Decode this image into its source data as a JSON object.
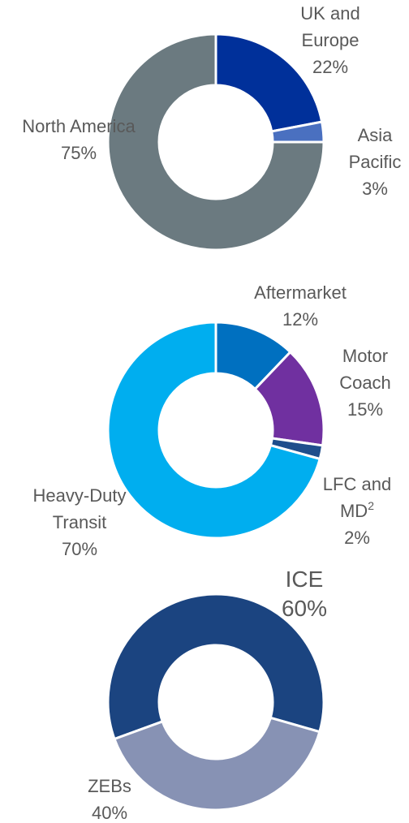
{
  "chart_data": [
    {
      "type": "pie",
      "startangle": 0,
      "categories": [
        "UK and Europe",
        "Asia Pacific",
        "North America"
      ],
      "values": [
        22,
        3,
        75
      ],
      "value_labels": [
        "22%",
        "3%",
        "75%"
      ],
      "colors": [
        "#00309a",
        "#4a70c0",
        "#6b7a80"
      ]
    },
    {
      "type": "pie",
      "startangle": 0,
      "categories": [
        "Aftermarket",
        "Motor Coach",
        "LFC and MD",
        "Heavy-Duty Transit"
      ],
      "category_notes": [
        null,
        null,
        "2",
        null
      ],
      "values": [
        12,
        15,
        2,
        70
      ],
      "value_labels": [
        "12%",
        "15%",
        "2%",
        "70%"
      ],
      "colors": [
        "#0070c0",
        "#7030a0",
        "#1f4e8c",
        "#00aeef"
      ]
    },
    {
      "type": "pie",
      "startangle": 250,
      "categories": [
        "ICE",
        "ZEBs"
      ],
      "values": [
        60,
        40
      ],
      "value_labels": [
        "60%",
        "40%"
      ],
      "colors": [
        "#1b4480",
        "#8792b4"
      ]
    }
  ]
}
